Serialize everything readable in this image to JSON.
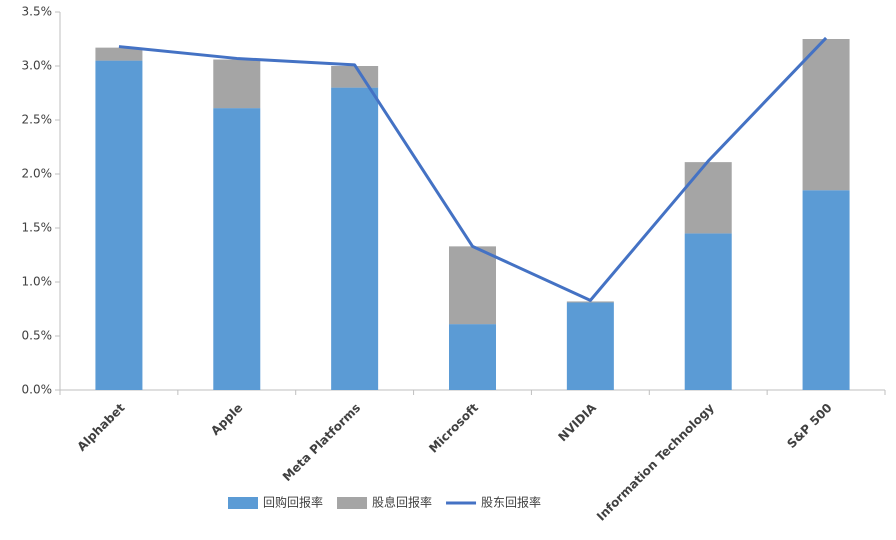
{
  "chart_data": {
    "type": "bar",
    "stacked": true,
    "categories": [
      "Alphabet",
      "Apple",
      "Meta Platforms",
      "Microsoft",
      "NVIDIA",
      "Information Technology",
      "S&P 500"
    ],
    "series": [
      {
        "name": "回购回报率",
        "color": "#5b9bd5",
        "values": [
          3.05,
          2.61,
          2.8,
          0.61,
          0.81,
          1.45,
          1.85
        ]
      },
      {
        "name": "股息回报率",
        "color": "#a5a5a5",
        "values": [
          0.12,
          0.45,
          0.2,
          0.72,
          0.01,
          0.66,
          1.4
        ]
      },
      {
        "name": "股东回报率",
        "color": "#4472c4",
        "type": "line",
        "values": [
          3.18,
          3.07,
          3.01,
          1.33,
          0.83,
          2.12,
          3.26
        ]
      }
    ],
    "ylim": [
      0,
      3.5
    ],
    "yticks": [
      {
        "value": 0,
        "label": "0.0%"
      },
      {
        "value": 0.5,
        "label": "0.5%"
      },
      {
        "value": 1,
        "label": "1.0%"
      },
      {
        "value": 1.5,
        "label": "1.5%"
      },
      {
        "value": 2,
        "label": "2.0%"
      },
      {
        "value": 2.5,
        "label": "2.5%"
      },
      {
        "value": 3,
        "label": "3.0%"
      },
      {
        "value": 3.5,
        "label": "3.5%"
      }
    ],
    "grid": false
  }
}
